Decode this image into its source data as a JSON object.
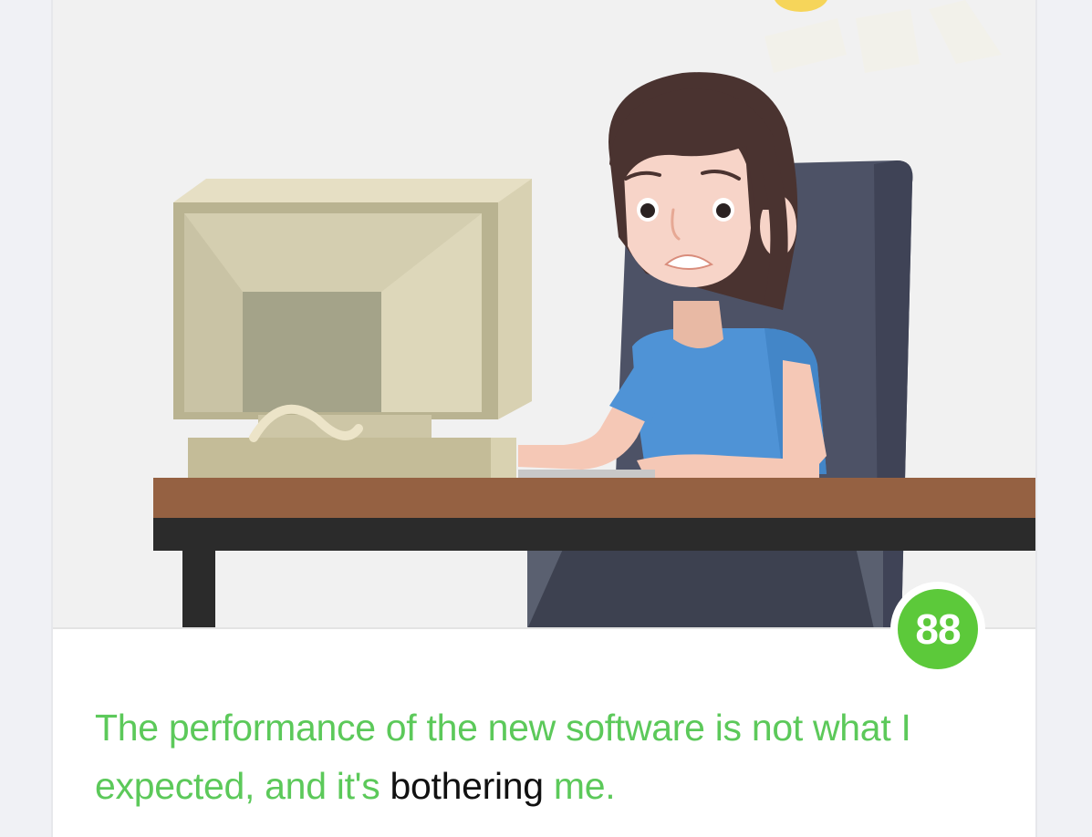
{
  "score": {
    "value": "88",
    "color": "#5cc93a"
  },
  "sentence": {
    "before": "The performance of the new software is not what I expected, and it's ",
    "highlight": "bothering",
    "after": " me.",
    "text_color": "#5cc95a",
    "highlight_color": "#111111"
  },
  "illustration": {
    "subject": "worried-woman-at-computer-illustration"
  }
}
